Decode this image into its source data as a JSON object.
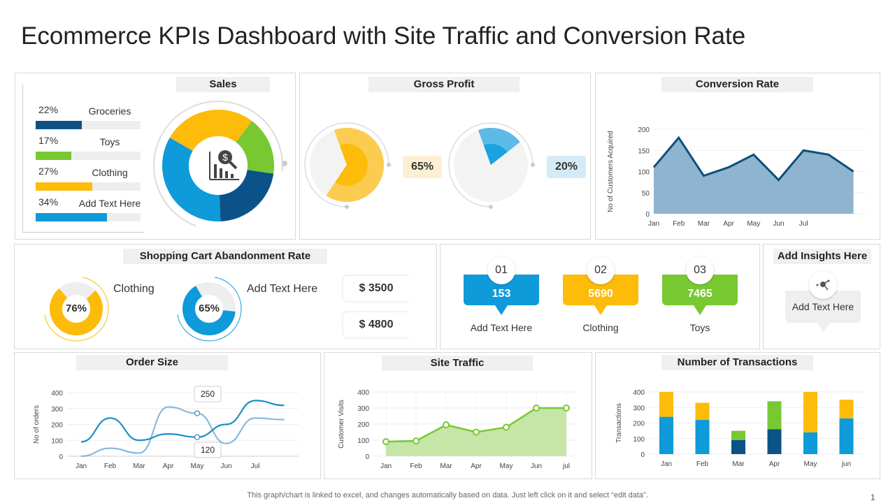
{
  "title": "Ecommerce KPIs Dashboard with Site Traffic and Conversion Rate",
  "colors": {
    "blue": "#0f9ad9",
    "navy": "#0b5289",
    "green": "#78c832",
    "yellow": "#fdbb0a",
    "light_blue": "#8ab8dc",
    "area_blue": "#8fb4cf"
  },
  "sales": {
    "title": "Sales",
    "icon": "chart-dollar-search-icon",
    "items": [
      {
        "pct": "22%",
        "label": "Groceries",
        "value": 22,
        "color": "#0b5289"
      },
      {
        "pct": "17%",
        "label": "Toys",
        "value": 17,
        "color": "#78c832"
      },
      {
        "pct": "27%",
        "label": "Clothing",
        "value": 27,
        "color": "#fdbb0a"
      },
      {
        "pct": "34%",
        "label": "Add Text Here",
        "value": 34,
        "color": "#0f9ad9"
      }
    ]
  },
  "gross_profit": {
    "title": "Gross Profit",
    "gauges": [
      {
        "label": "65%",
        "value": 65,
        "color": "#fdbb0a"
      },
      {
        "label": "20%",
        "value": 20,
        "color": "#1aa3e0"
      }
    ]
  },
  "conversion_rate": {
    "title": "Conversion Rate",
    "chart_data": {
      "type": "area",
      "ylabel": "No of Customers Acquired",
      "ylim": [
        0,
        200
      ],
      "yticks": [
        0,
        50,
        100,
        150,
        200
      ],
      "categories": [
        "Jan",
        "Feb",
        "Mar",
        "Apr",
        "May",
        "Jun",
        "Jul",
        "",
        ""
      ],
      "values": [
        110,
        180,
        90,
        110,
        140,
        80,
        150,
        140,
        100
      ]
    }
  },
  "cart_abandonment": {
    "title": "Shopping Cart Abandonment Rate",
    "donuts": [
      {
        "label": "76%",
        "value": 76,
        "text": "Clothing",
        "color": "#fdbb0a"
      },
      {
        "label": "65%",
        "value": 65,
        "text": "Add Text Here",
        "color": "#0f9ad9"
      }
    ],
    "amounts": [
      "$ 3500",
      "$ 4800"
    ]
  },
  "kpis": [
    {
      "num": "01",
      "value": "153",
      "label": "Add Text Here",
      "color": "#0f9ad9"
    },
    {
      "num": "02",
      "value": "5690",
      "label": "Clothing",
      "color": "#fdbb0a"
    },
    {
      "num": "03",
      "value": "7465",
      "label": "Toys",
      "color": "#78c832"
    }
  ],
  "insights": {
    "title": "Add Insights Here",
    "text": "Add Text Here",
    "icon": "network-search-icon"
  },
  "order_size": {
    "title": "Order Size",
    "chart_data": {
      "type": "line",
      "ylabel": "No of orders",
      "ylim": [
        0,
        400
      ],
      "yticks": [
        0,
        100,
        200,
        300,
        400
      ],
      "categories": [
        "Jan",
        "Feb",
        "Mar",
        "Apr",
        "May",
        "Jun",
        "Jul",
        ""
      ],
      "series": [
        {
          "values": [
            90,
            240,
            100,
            140,
            120,
            200,
            350,
            320
          ],
          "color": "#1a8fc4"
        },
        {
          "values": [
            0,
            50,
            20,
            310,
            270,
            80,
            240,
            230
          ],
          "color": "#8ab8dc"
        }
      ],
      "callouts": [
        "250",
        "120"
      ]
    }
  },
  "site_traffic": {
    "title": "Site Traffic",
    "chart_data": {
      "type": "area",
      "ylabel": "Customer Visits",
      "ylim": [
        0,
        400
      ],
      "yticks": [
        0,
        100,
        200,
        300,
        400
      ],
      "categories": [
        "Jan",
        "Feb",
        "Mar",
        "Apr",
        "May",
        "Jun",
        "jul"
      ],
      "values": [
        90,
        95,
        195,
        150,
        180,
        300,
        300
      ]
    }
  },
  "transactions": {
    "title": "Number of Transactions",
    "chart_data": {
      "type": "bar",
      "stacked": true,
      "ylabel": "Transactions",
      "ylim": [
        0,
        400
      ],
      "yticks": [
        0,
        100,
        200,
        300,
        400
      ],
      "categories": [
        "Jan",
        "Feb",
        "Mar",
        "Apr",
        "May",
        "jun"
      ],
      "bottom": [
        {
          "value": 240,
          "color": "#0f9ad9"
        },
        {
          "value": 220,
          "color": "#0f9ad9"
        },
        {
          "value": 90,
          "color": "#0b5289"
        },
        {
          "value": 160,
          "color": "#0b5289"
        },
        {
          "value": 140,
          "color": "#0f9ad9"
        },
        {
          "value": 230,
          "color": "#0f9ad9"
        }
      ],
      "top": [
        {
          "value": 160,
          "color": "#fdbb0a"
        },
        {
          "value": 110,
          "color": "#fdbb0a"
        },
        {
          "value": 60,
          "color": "#78c832"
        },
        {
          "value": 180,
          "color": "#78c832"
        },
        {
          "value": 260,
          "color": "#fdbb0a"
        },
        {
          "value": 120,
          "color": "#fdbb0a"
        }
      ]
    }
  },
  "footer": "This graph/chart is linked to excel, and changes automatically based on data. Just left click on it and select “edit data”.",
  "page_number": "1"
}
